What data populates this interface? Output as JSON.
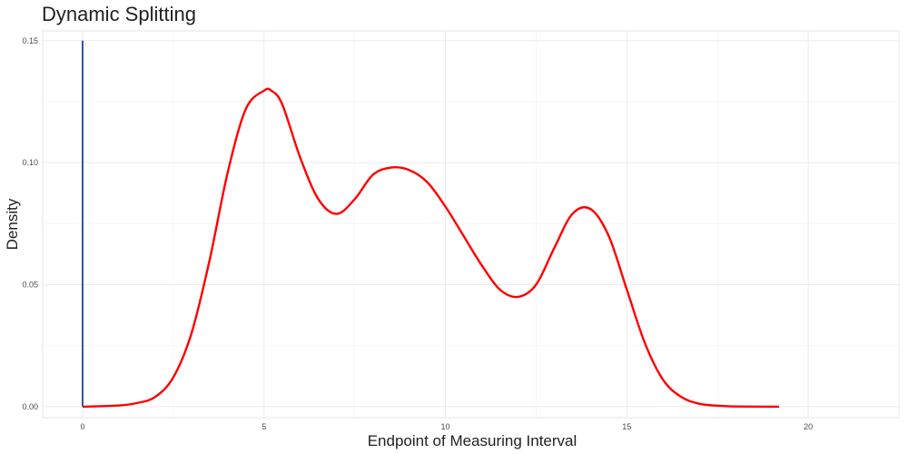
{
  "chart_data": {
    "type": "line",
    "title": "Dynamic Splitting",
    "xlabel": "Endpoint of Measuring Interval",
    "ylabel": "Density",
    "xlim": [
      -1.1,
      22.5
    ],
    "ylim": [
      -0.0045,
      0.154
    ],
    "x_ticks": [
      0,
      5,
      10,
      15,
      20
    ],
    "x_tick_labels": [
      "0",
      "5",
      "10",
      "15",
      "20"
    ],
    "y_ticks": [
      0.0,
      0.05,
      0.1,
      0.15
    ],
    "y_tick_labels": [
      "0.00",
      "0.05",
      "0.10",
      "0.15"
    ],
    "grid": true,
    "series": [
      {
        "color": "#ff0000",
        "x": [
          0,
          1,
          1.5,
          2,
          2.5,
          3,
          3.5,
          4,
          4.5,
          5,
          5.2,
          5.5,
          6,
          6.5,
          7,
          7.5,
          8,
          8.5,
          9,
          9.5,
          10,
          10.5,
          11,
          11.5,
          12,
          12.5,
          13,
          13.5,
          14,
          14.5,
          15,
          15.5,
          16,
          16.5,
          17,
          17.5,
          18,
          19.2
        ],
        "y": [
          0.0,
          0.0005,
          0.0015,
          0.004,
          0.012,
          0.03,
          0.06,
          0.096,
          0.122,
          0.1295,
          0.1295,
          0.124,
          0.102,
          0.085,
          0.079,
          0.085,
          0.095,
          0.098,
          0.097,
          0.092,
          0.082,
          0.07,
          0.058,
          0.048,
          0.045,
          0.05,
          0.065,
          0.079,
          0.081,
          0.07,
          0.048,
          0.026,
          0.011,
          0.004,
          0.0012,
          0.0004,
          0.0001,
          0.0
        ]
      },
      {
        "color": "#1f3fa8",
        "x": [
          0,
          0
        ],
        "y": [
          0.0,
          0.15
        ]
      }
    ]
  }
}
